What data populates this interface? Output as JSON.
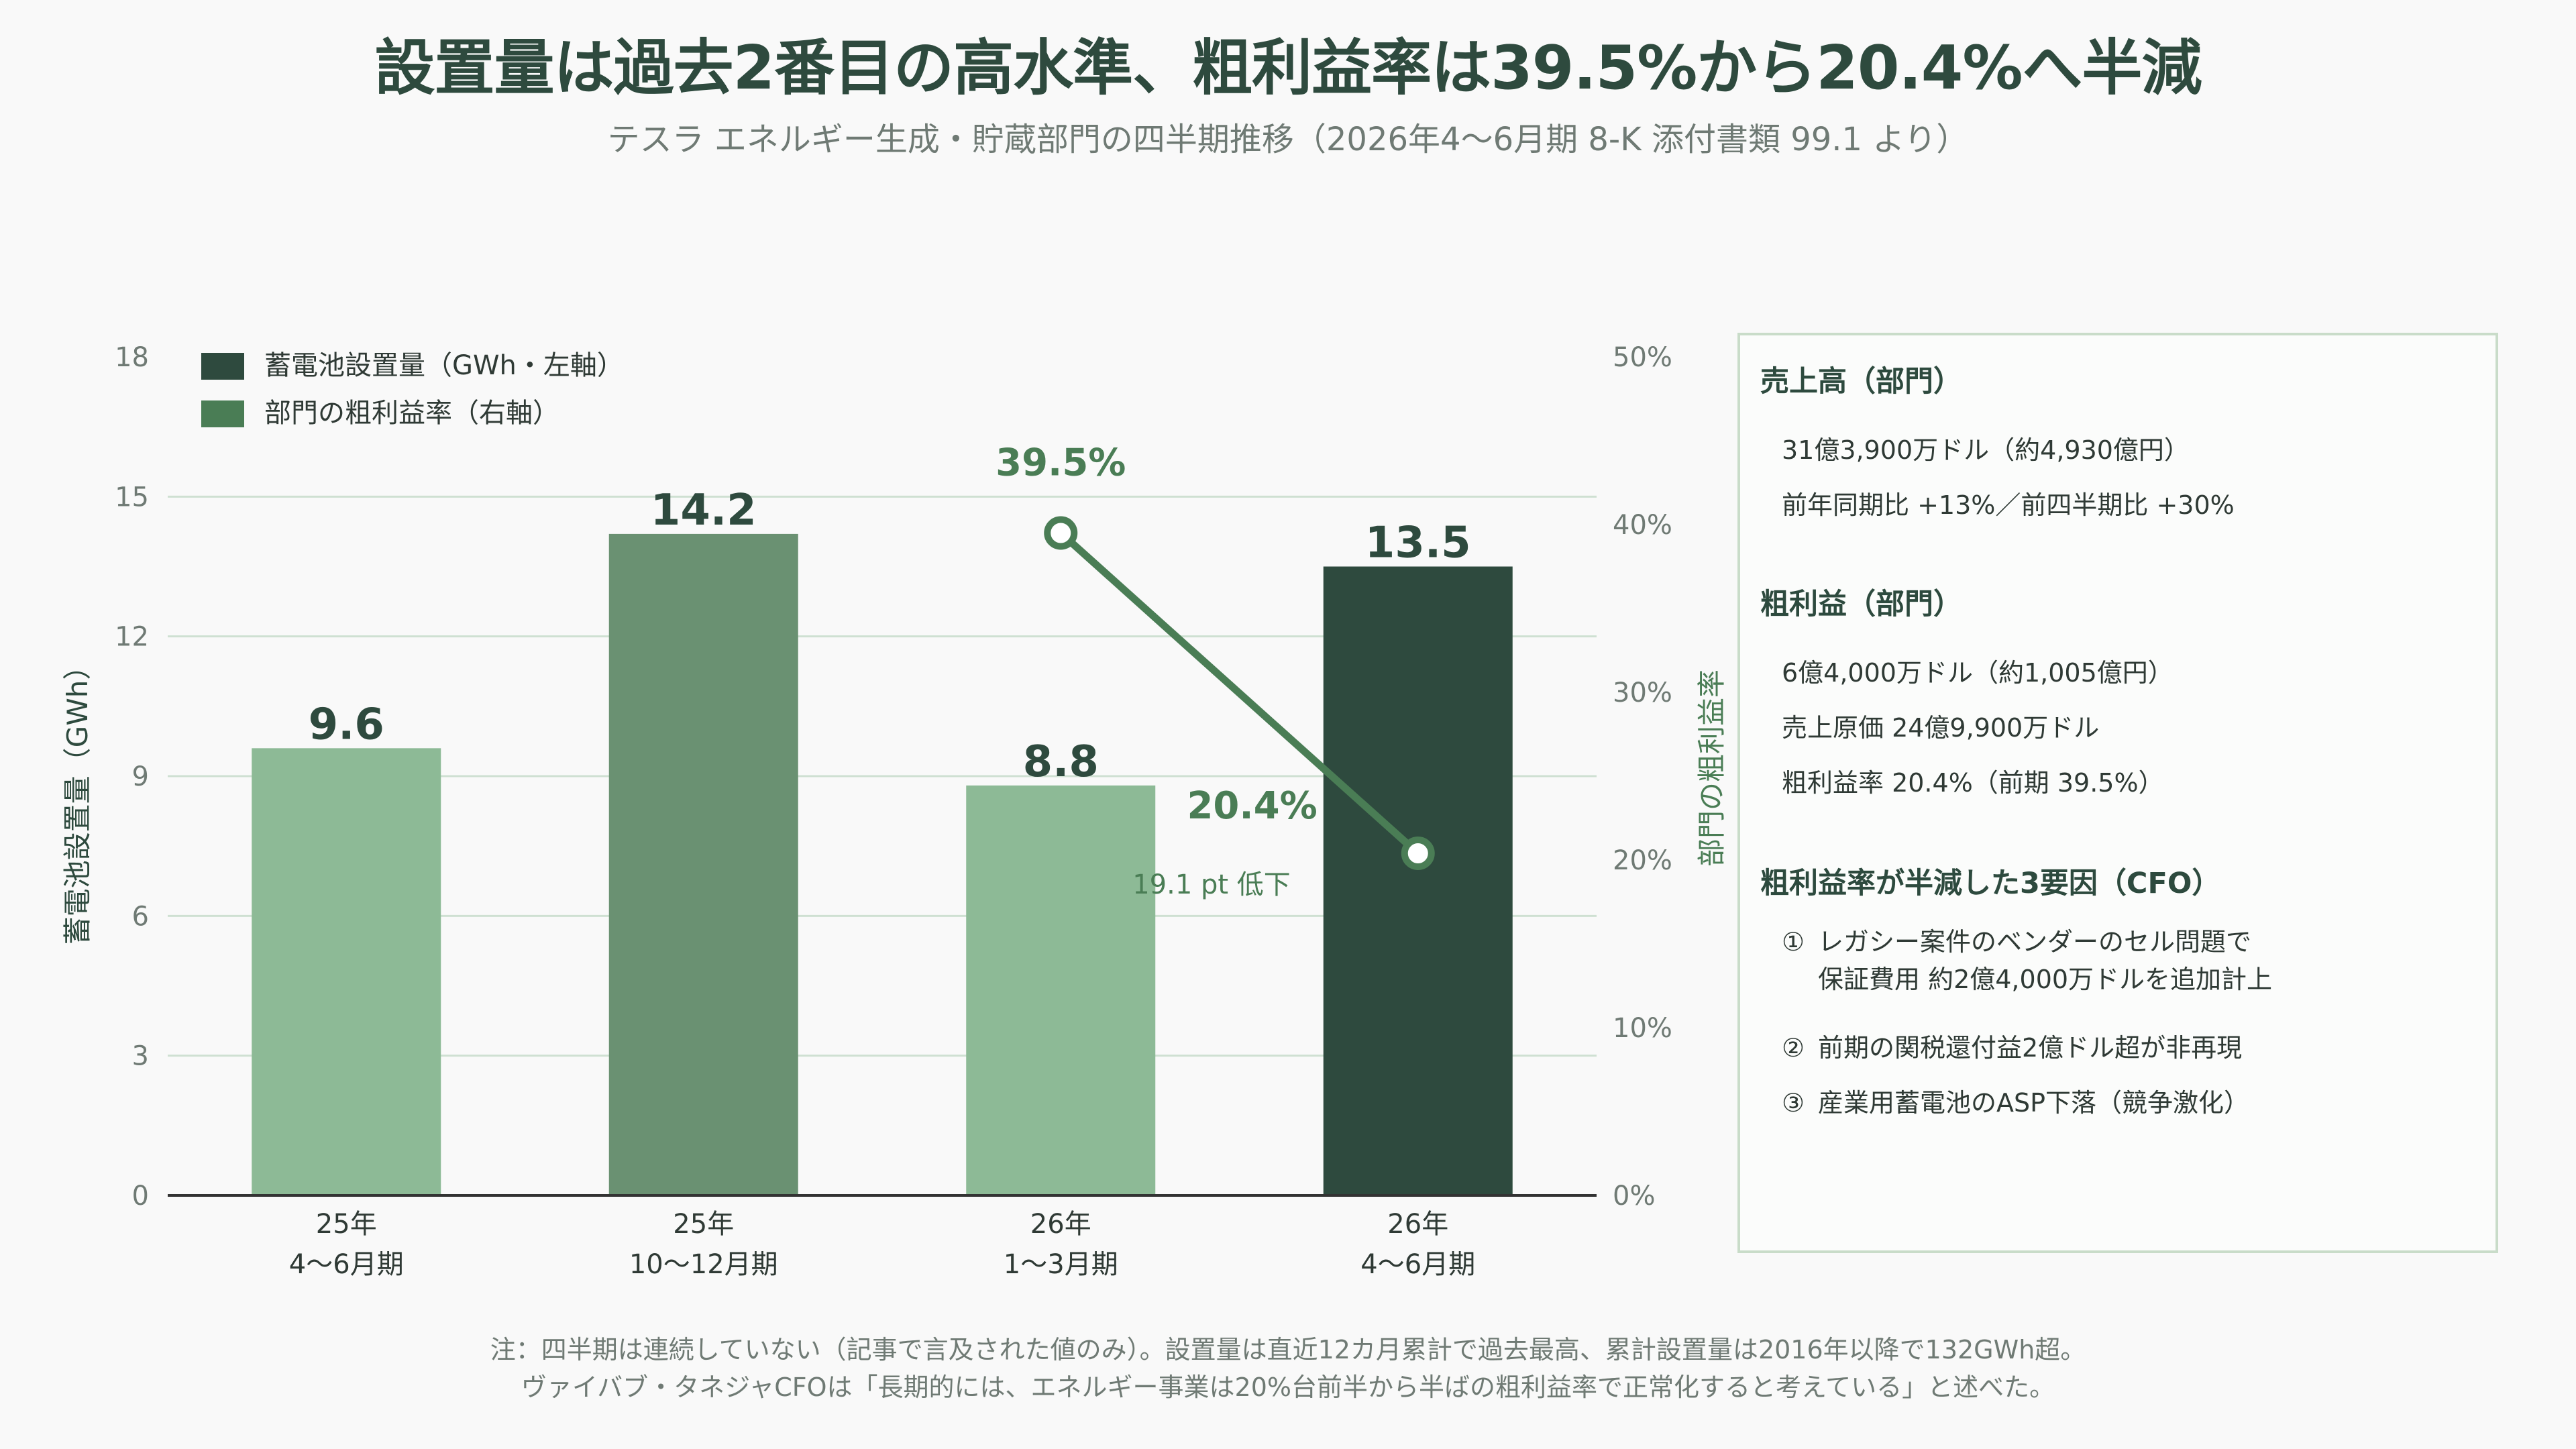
{
  "title": "設置量は過去2番目の高水準、粗利益率は39.5%から20.4%へ半減",
  "subtitle": "テスラ エネルギー生成・貯蔵部門の四半期推移（2026年4〜6月期 8-K 添付書類 99.1 より）",
  "colors": {
    "bar_light": "#8dba96",
    "bar_mid": "#6a9172",
    "bar_dark": "#2e4a3e",
    "line": "#4a7d55",
    "grid": "#cfe0d2",
    "axis": "#333333",
    "label_green": "#4a7d55"
  },
  "chart_data": {
    "type": "bar",
    "categories": [
      [
        "25年",
        "4〜6月期"
      ],
      [
        "25年",
        "10〜12月期"
      ],
      [
        "26年",
        "1〜3月期"
      ],
      [
        "26年",
        "4〜6月期"
      ]
    ],
    "series": [
      {
        "name": "蓄電池設置量（GWh・左軸）",
        "axis": "left",
        "values": [
          9.6,
          14.2,
          8.8,
          13.5
        ],
        "data_labels": [
          "9.6",
          "14.2",
          "8.8",
          "13.5"
        ],
        "bar_colors": [
          "#8dba96",
          "#6a9172",
          "#8dba96",
          "#2e4a3e"
        ]
      },
      {
        "name": "部門の粗利益率（右軸）",
        "type": "line",
        "axis": "right",
        "values": [
          null,
          null,
          39.5,
          20.4
        ],
        "data_labels": [
          null,
          null,
          "39.5%",
          "20.4%"
        ]
      }
    ],
    "ylabel": "蓄電池設置量（GWh）",
    "ylabel_right": "部門の粗利益率",
    "ylim": [
      0,
      18
    ],
    "yticks": [
      0,
      3,
      6,
      9,
      12,
      15,
      18
    ],
    "ylim_right": [
      0,
      50
    ],
    "yticks_right": [
      "0%",
      "10%",
      "20%",
      "30%",
      "40%",
      "50%"
    ],
    "annotation": "19.1 pt 低下",
    "legend_position": "top-left",
    "grid": true
  },
  "panel": {
    "sales_head": "売上高（部門）",
    "sales_lines": [
      "31億3,900万ドル（約4,930億円）",
      "前年同期比 +13%／前四半期比 +30%"
    ],
    "gp_head": "粗利益（部門）",
    "gp_lines": [
      "6億4,000万ドル（約1,005億円）",
      "売上原価 24億9,900万ドル",
      "粗利益率 20.4%（前期 39.5%）"
    ],
    "factors_head": "粗利益率が半減した3要因（CFO）",
    "factors": [
      {
        "num": "①",
        "text": "レガシー案件のベンダーのセル問題で",
        "cont": "保証費用 約2億4,000万ドルを追加計上"
      },
      {
        "num": "②",
        "text": "前期の関税還付益2億ドル超が非再現",
        "cont": ""
      },
      {
        "num": "③",
        "text": "産業用蓄電池のASP下落（競争激化）",
        "cont": ""
      }
    ]
  },
  "footnote": [
    "注：四半期は連続していない（記事で言及された値のみ）。設置量は直近12カ月累計で過去最高、累計設置量は2016年以降で132GWh超。",
    "ヴァイバブ・タネジャCFOは「長期的には、エネルギー事業は20%台前半から半ばの粗利益率で正常化すると考えている」と述べた。"
  ]
}
